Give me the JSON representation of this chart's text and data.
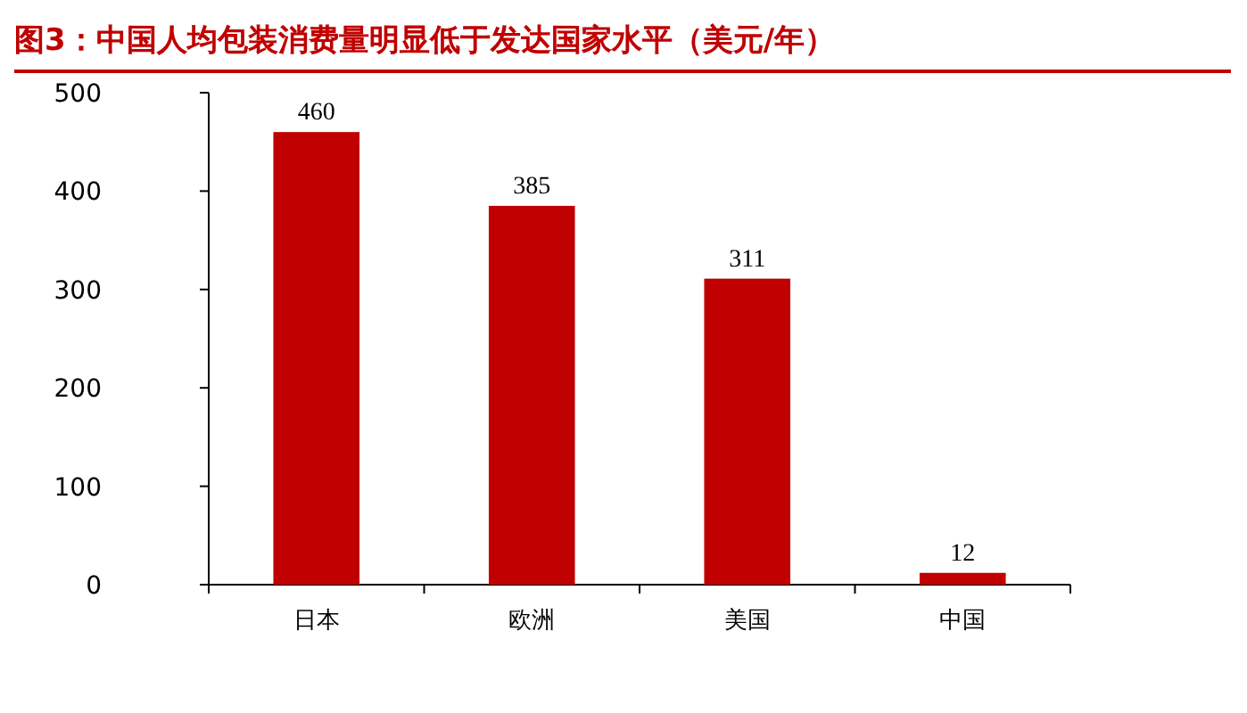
{
  "chart_data": {
    "type": "bar",
    "title": "图3：中国人均包装消费量明显低于发达国家水平（美元/年）",
    "categories": [
      "日本",
      "欧洲",
      "美国",
      "中国"
    ],
    "values": [
      460,
      385,
      311,
      12
    ],
    "color": "#c00000",
    "ylim": [
      0,
      500
    ],
    "yticks": [
      0,
      100,
      200,
      300,
      400,
      500
    ],
    "data_labels": true
  }
}
